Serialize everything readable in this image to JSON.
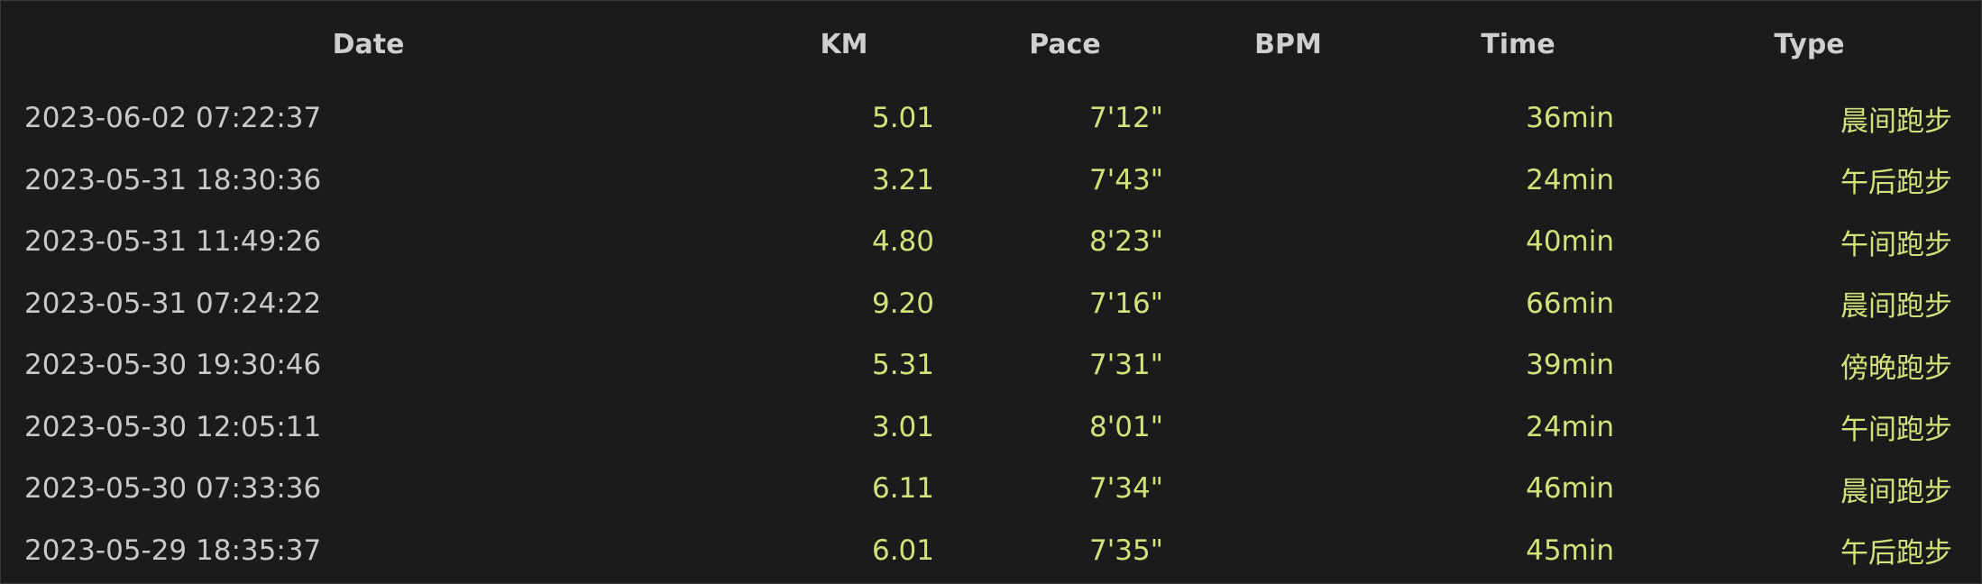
{
  "table": {
    "headers": {
      "date": "Date",
      "km": "KM",
      "pace": "Pace",
      "bpm": "BPM",
      "time": "Time",
      "type": "Type"
    },
    "rows": [
      {
        "date": "2023-06-02 07:22:37",
        "km": "5.01",
        "pace": "7'12\"",
        "bpm": "",
        "time": "36min",
        "type": "晨间跑步"
      },
      {
        "date": "2023-05-31 18:30:36",
        "km": "3.21",
        "pace": "7'43\"",
        "bpm": "",
        "time": "24min",
        "type": "午后跑步"
      },
      {
        "date": "2023-05-31 11:49:26",
        "km": "4.80",
        "pace": "8'23\"",
        "bpm": "",
        "time": "40min",
        "type": "午间跑步"
      },
      {
        "date": "2023-05-31 07:24:22",
        "km": "9.20",
        "pace": "7'16\"",
        "bpm": "",
        "time": "66min",
        "type": "晨间跑步"
      },
      {
        "date": "2023-05-30 19:30:46",
        "km": "5.31",
        "pace": "7'31\"",
        "bpm": "",
        "time": "39min",
        "type": "傍晚跑步"
      },
      {
        "date": "2023-05-30 12:05:11",
        "km": "3.01",
        "pace": "8'01\"",
        "bpm": "",
        "time": "24min",
        "type": "午间跑步"
      },
      {
        "date": "2023-05-30 07:33:36",
        "km": "6.11",
        "pace": "7'34\"",
        "bpm": "",
        "time": "46min",
        "type": "晨间跑步"
      },
      {
        "date": "2023-05-29 18:35:37",
        "km": "6.01",
        "pace": "7'35\"",
        "bpm": "",
        "time": "45min",
        "type": "午后跑步"
      }
    ]
  }
}
